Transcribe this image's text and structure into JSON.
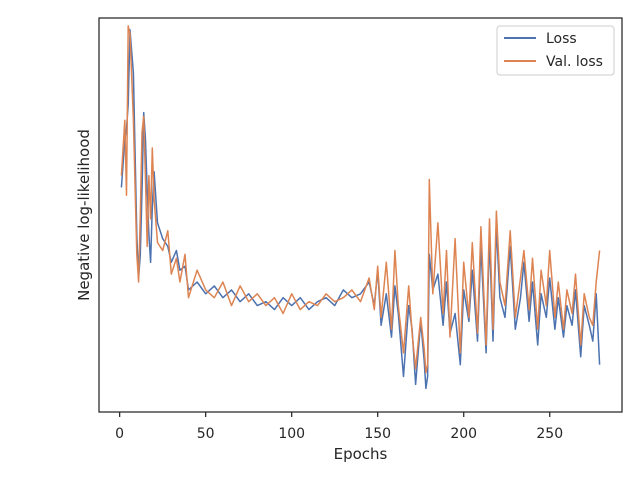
{
  "chart_data": {
    "type": "line",
    "title": "",
    "xlabel": "Epochs",
    "ylabel": "Negative log-likelihood",
    "xlim": [
      -12,
      292
    ],
    "ylim": [
      0,
      1
    ],
    "xticks": [
      0,
      50,
      100,
      150,
      200,
      250
    ],
    "xtick_labels": [
      "0",
      "50",
      "100",
      "150",
      "200",
      "250"
    ],
    "yticks_shown": false,
    "grid": false,
    "legend_position": "top-right",
    "series": [
      {
        "name": "Loss",
        "color": "#4c72b0",
        "x": [
          1,
          3,
          4,
          5,
          6,
          8,
          10,
          11,
          12,
          13,
          14,
          15,
          16,
          17,
          18,
          19,
          20,
          22,
          25,
          28,
          30,
          33,
          35,
          38,
          40,
          45,
          50,
          55,
          60,
          65,
          70,
          75,
          80,
          85,
          90,
          95,
          100,
          105,
          110,
          115,
          120,
          125,
          130,
          135,
          140,
          145,
          148,
          150,
          152,
          155,
          158,
          160,
          162,
          165,
          168,
          170,
          172,
          175,
          177,
          178,
          179,
          180,
          182,
          185,
          188,
          190,
          192,
          195,
          198,
          200,
          203,
          205,
          208,
          210,
          213,
          215,
          217,
          219,
          221,
          224,
          227,
          230,
          233,
          235,
          238,
          240,
          243,
          245,
          248,
          250,
          253,
          255,
          258,
          260,
          263,
          265,
          268,
          270,
          273,
          275,
          277,
          279
        ],
        "y": [
          0.57,
          0.69,
          0.72,
          0.78,
          0.97,
          0.86,
          0.45,
          0.34,
          0.4,
          0.56,
          0.76,
          0.69,
          0.56,
          0.45,
          0.38,
          0.52,
          0.61,
          0.48,
          0.44,
          0.42,
          0.38,
          0.41,
          0.36,
          0.37,
          0.31,
          0.33,
          0.3,
          0.32,
          0.29,
          0.31,
          0.28,
          0.3,
          0.27,
          0.28,
          0.26,
          0.29,
          0.27,
          0.29,
          0.26,
          0.28,
          0.29,
          0.27,
          0.31,
          0.29,
          0.3,
          0.33,
          0.27,
          0.36,
          0.22,
          0.3,
          0.19,
          0.32,
          0.25,
          0.09,
          0.27,
          0.21,
          0.07,
          0.23,
          0.13,
          0.06,
          0.09,
          0.4,
          0.31,
          0.35,
          0.22,
          0.33,
          0.2,
          0.25,
          0.12,
          0.31,
          0.23,
          0.36,
          0.18,
          0.42,
          0.15,
          0.44,
          0.18,
          0.47,
          0.29,
          0.24,
          0.42,
          0.21,
          0.29,
          0.38,
          0.23,
          0.33,
          0.17,
          0.3,
          0.24,
          0.34,
          0.21,
          0.29,
          0.19,
          0.27,
          0.22,
          0.31,
          0.14,
          0.27,
          0.22,
          0.18,
          0.3,
          0.12
        ]
      },
      {
        "name": "Val. loss",
        "color": "#dd8452",
        "x": [
          1,
          3,
          4,
          5,
          6,
          8,
          10,
          11,
          12,
          13,
          14,
          15,
          16,
          17,
          18,
          19,
          20,
          22,
          25,
          28,
          30,
          33,
          35,
          38,
          40,
          45,
          50,
          55,
          60,
          65,
          70,
          75,
          80,
          85,
          90,
          95,
          100,
          105,
          110,
          115,
          120,
          125,
          130,
          135,
          140,
          145,
          148,
          150,
          152,
          155,
          158,
          160,
          162,
          165,
          168,
          170,
          172,
          175,
          177,
          178,
          179,
          180,
          182,
          185,
          188,
          190,
          192,
          195,
          198,
          200,
          203,
          205,
          208,
          210,
          213,
          215,
          217,
          219,
          221,
          224,
          227,
          230,
          233,
          235,
          238,
          240,
          243,
          245,
          248,
          250,
          253,
          255,
          258,
          260,
          263,
          265,
          268,
          270,
          273,
          275,
          277,
          279
        ],
        "y": [
          0.6,
          0.74,
          0.55,
          0.98,
          0.96,
          0.74,
          0.4,
          0.33,
          0.5,
          0.71,
          0.75,
          0.59,
          0.42,
          0.6,
          0.49,
          0.67,
          0.54,
          0.43,
          0.41,
          0.46,
          0.35,
          0.39,
          0.33,
          0.4,
          0.29,
          0.36,
          0.31,
          0.29,
          0.33,
          0.27,
          0.32,
          0.28,
          0.3,
          0.27,
          0.29,
          0.25,
          0.3,
          0.26,
          0.28,
          0.27,
          0.3,
          0.28,
          0.29,
          0.31,
          0.28,
          0.34,
          0.26,
          0.37,
          0.24,
          0.38,
          0.21,
          0.41,
          0.27,
          0.15,
          0.32,
          0.2,
          0.11,
          0.24,
          0.16,
          0.1,
          0.12,
          0.59,
          0.3,
          0.48,
          0.25,
          0.41,
          0.19,
          0.44,
          0.15,
          0.38,
          0.24,
          0.43,
          0.2,
          0.47,
          0.17,
          0.49,
          0.21,
          0.51,
          0.33,
          0.27,
          0.46,
          0.24,
          0.34,
          0.41,
          0.26,
          0.39,
          0.21,
          0.36,
          0.27,
          0.41,
          0.24,
          0.33,
          0.21,
          0.31,
          0.25,
          0.35,
          0.17,
          0.3,
          0.24,
          0.22,
          0.33,
          0.41
        ]
      }
    ]
  }
}
